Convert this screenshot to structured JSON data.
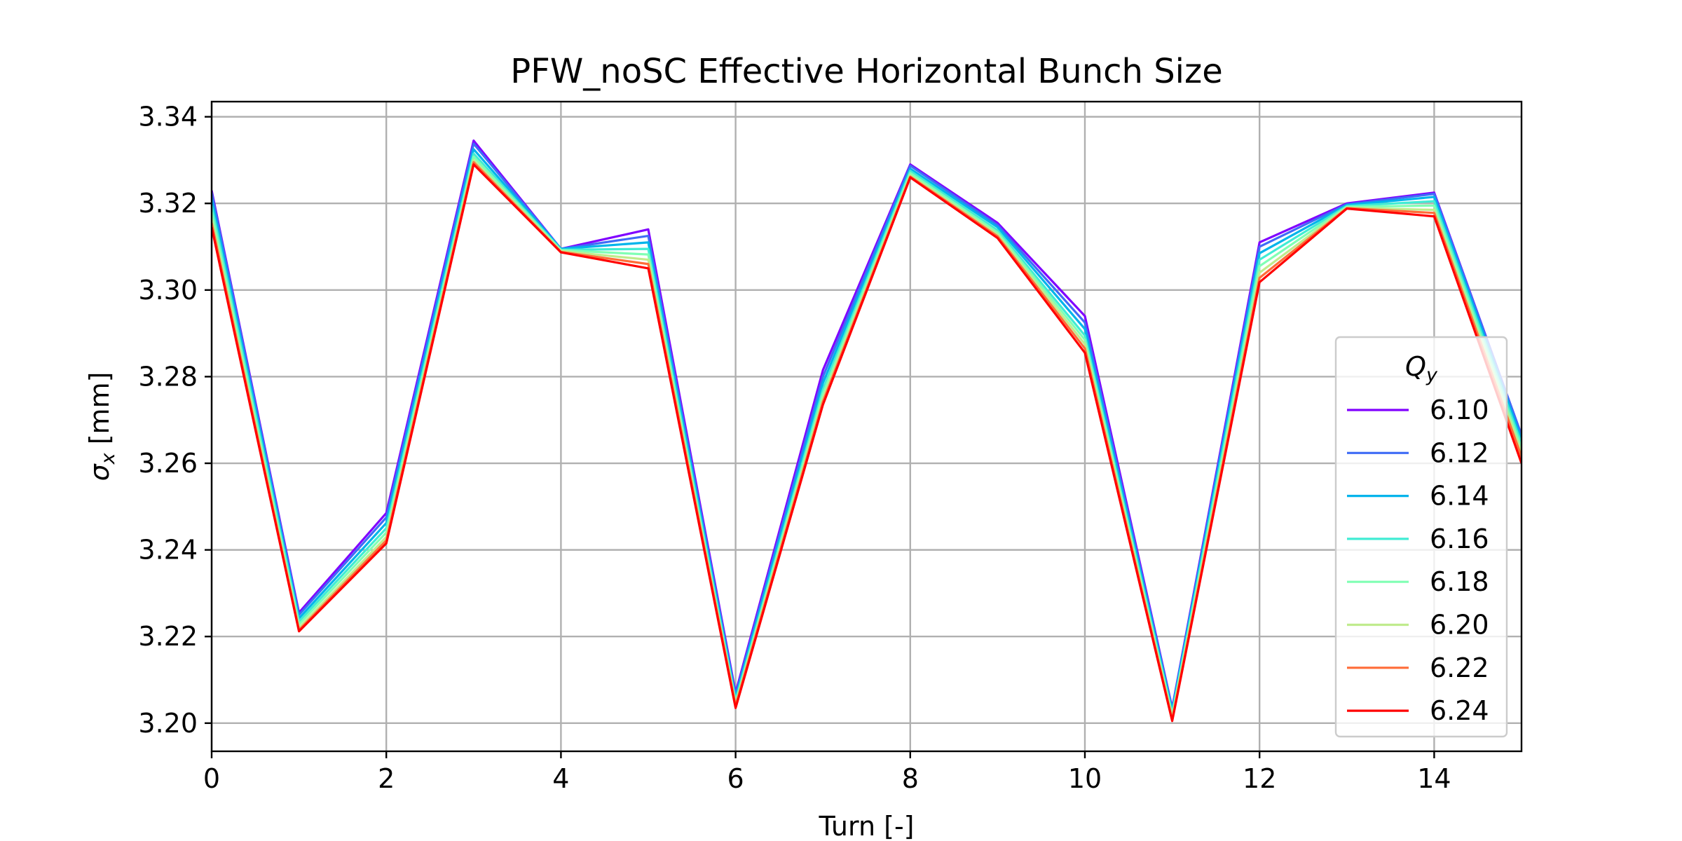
{
  "chart_data": {
    "type": "line",
    "title": "PFW_noSC Effective Horizontal Bunch Size",
    "xlabel": "Turn [-]",
    "ylabel_symbol": "σ",
    "ylabel_subscript": "x",
    "ylabel_unit": " [mm]",
    "xlim": [
      0,
      15
    ],
    "ylim": [
      3.1935,
      3.3435
    ],
    "x_ticks": [
      0,
      2,
      4,
      6,
      8,
      10,
      12,
      14
    ],
    "x_tick_labels": [
      "0",
      "2",
      "4",
      "6",
      "8",
      "10",
      "12",
      "14"
    ],
    "y_ticks": [
      3.2,
      3.22,
      3.24,
      3.26,
      3.28,
      3.3,
      3.32,
      3.34
    ],
    "y_tick_labels": [
      "3.20",
      "3.22",
      "3.24",
      "3.26",
      "3.28",
      "3.30",
      "3.32",
      "3.34"
    ],
    "grid": true,
    "legend": {
      "title_symbol": "Q",
      "title_subscript": "y",
      "placement": "lower-right"
    },
    "x": [
      0,
      1,
      2,
      3,
      4,
      5,
      6,
      7,
      8,
      9,
      10,
      11,
      12,
      13,
      14,
      15
    ],
    "series": [
      {
        "name": "6.10",
        "color": "#8000ff",
        "values": [
          3.323,
          3.2255,
          3.2485,
          3.3345,
          3.3095,
          3.314,
          3.207,
          3.2815,
          3.329,
          3.3155,
          3.294,
          3.2035,
          3.311,
          3.32,
          3.3225,
          3.2665
        ]
      },
      {
        "name": "6.12",
        "color": "#3f6cf6",
        "values": [
          3.3225,
          3.225,
          3.2475,
          3.3338,
          3.3095,
          3.3125,
          3.2065,
          3.28,
          3.3287,
          3.315,
          3.2925,
          3.2033,
          3.31,
          3.3198,
          3.3222,
          3.2665
        ]
      },
      {
        "name": "6.14",
        "color": "#00b4eb",
        "values": [
          3.321,
          3.2242,
          3.2462,
          3.3325,
          3.3095,
          3.311,
          3.2058,
          3.2785,
          3.328,
          3.3145,
          3.291,
          3.2028,
          3.3085,
          3.3196,
          3.3215,
          3.2655
        ]
      },
      {
        "name": "6.16",
        "color": "#40ecd4",
        "values": [
          3.3195,
          3.2235,
          3.245,
          3.3315,
          3.3093,
          3.3095,
          3.2052,
          3.277,
          3.3275,
          3.3138,
          3.2895,
          3.2022,
          3.307,
          3.3194,
          3.3205,
          3.2645
        ]
      },
      {
        "name": "6.18",
        "color": "#80ffb4",
        "values": [
          3.318,
          3.2228,
          3.244,
          3.3308,
          3.3092,
          3.3082,
          3.2048,
          3.276,
          3.327,
          3.3133,
          3.2885,
          3.2018,
          3.3055,
          3.3192,
          3.3195,
          3.2635
        ]
      },
      {
        "name": "6.20",
        "color": "#c0eb8d",
        "values": [
          3.3165,
          3.222,
          3.243,
          3.33,
          3.309,
          3.307,
          3.2043,
          3.275,
          3.3265,
          3.3128,
          3.2875,
          3.2013,
          3.304,
          3.319,
          3.3185,
          3.2625
        ]
      },
      {
        "name": "6.22",
        "color": "#ff6c38",
        "values": [
          3.3155,
          3.2215,
          3.2422,
          3.3295,
          3.3088,
          3.306,
          3.204,
          3.2742,
          3.3262,
          3.3124,
          3.2865,
          3.2008,
          3.3028,
          3.3189,
          3.3178,
          3.2615
        ]
      },
      {
        "name": "6.24",
        "color": "#ff0000",
        "values": [
          3.3145,
          3.2212,
          3.2415,
          3.329,
          3.3087,
          3.305,
          3.2035,
          3.2735,
          3.326,
          3.312,
          3.2855,
          3.2005,
          3.3018,
          3.3188,
          3.317,
          3.26
        ]
      }
    ]
  }
}
